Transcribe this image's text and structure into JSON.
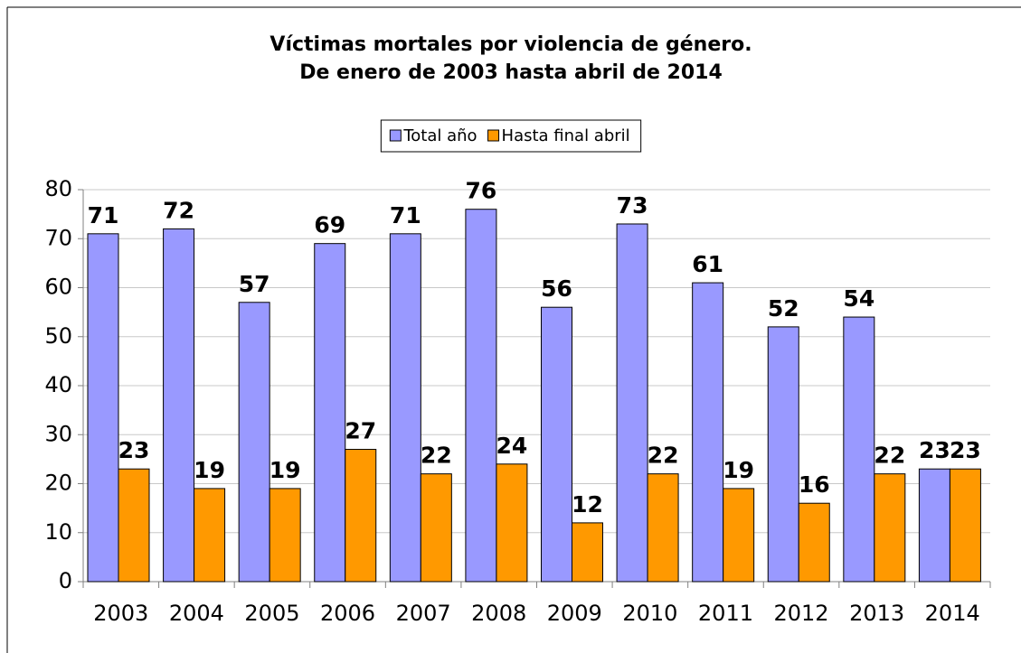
{
  "chart_data": {
    "type": "bar",
    "title": [
      "Víctimas mortales por violencia de género.",
      "De enero de 2003 hasta abril de 2014"
    ],
    "categories": [
      "2003",
      "2004",
      "2005",
      "2006",
      "2007",
      "2008",
      "2009",
      "2010",
      "2011",
      "2012",
      "2013",
      "2014"
    ],
    "series": [
      {
        "name": "Total año",
        "color": "#9999ff",
        "values": [
          71,
          72,
          57,
          69,
          71,
          76,
          56,
          73,
          61,
          52,
          54,
          23
        ]
      },
      {
        "name": "Hasta final abril",
        "color": "#ff9900",
        "values": [
          23,
          19,
          19,
          27,
          22,
          24,
          12,
          22,
          19,
          16,
          22,
          23
        ]
      }
    ],
    "ylim": [
      0,
      80
    ],
    "yticks": [
      0,
      10,
      20,
      30,
      40,
      50,
      60,
      70,
      80
    ],
    "grid": true,
    "legend": "top"
  }
}
